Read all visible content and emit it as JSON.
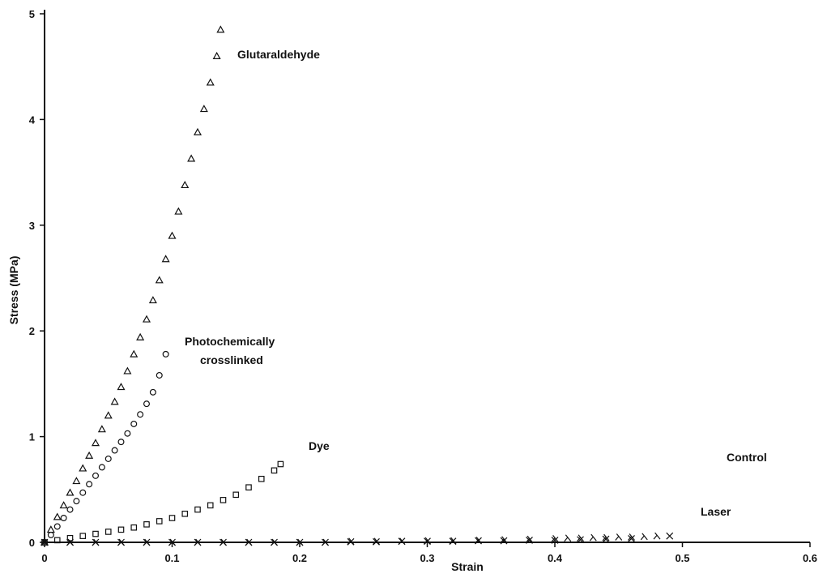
{
  "chart_data": {
    "type": "scatter",
    "title": "",
    "xlabel": "Strain",
    "ylabel": "Stress (MPa)",
    "xlim": [
      0,
      0.6
    ],
    "ylim": [
      0,
      5
    ],
    "xticks": [
      "0",
      "0.1",
      "0.2",
      "0.3",
      "0.4",
      "0.5",
      "0.6"
    ],
    "yticks": [
      "0",
      "1",
      "2",
      "3",
      "4",
      "5"
    ],
    "grid": false,
    "legend": "none",
    "annotations": [
      {
        "text": "Glutaraldehyde",
        "series": "glutaraldehyde"
      },
      {
        "text": "Photochemically",
        "series": "photochemical"
      },
      {
        "text": "crosslinked",
        "series": "photochemical"
      },
      {
        "text": "Dye",
        "series": "dye"
      },
      {
        "text": "Control",
        "series": "control"
      },
      {
        "text": "Laser",
        "series": "laser"
      }
    ],
    "series": [
      {
        "key": "glutaraldehyde",
        "marker": "triangle",
        "x": [
          0.0,
          0.005,
          0.01,
          0.015,
          0.02,
          0.025,
          0.03,
          0.035,
          0.04,
          0.045,
          0.05,
          0.055,
          0.06,
          0.065,
          0.07,
          0.075,
          0.08,
          0.085,
          0.09,
          0.095,
          0.1,
          0.105,
          0.11,
          0.115,
          0.12,
          0.125,
          0.13,
          0.135,
          0.138
        ],
        "y": [
          0.0,
          0.12,
          0.24,
          0.35,
          0.47,
          0.58,
          0.7,
          0.82,
          0.94,
          1.07,
          1.2,
          1.33,
          1.47,
          1.62,
          1.78,
          1.94,
          2.11,
          2.29,
          2.48,
          2.68,
          2.9,
          3.13,
          3.38,
          3.63,
          3.88,
          4.1,
          4.35,
          4.6,
          4.85
        ]
      },
      {
        "key": "photochemical",
        "marker": "circle",
        "x": [
          0.0,
          0.005,
          0.01,
          0.015,
          0.02,
          0.025,
          0.03,
          0.035,
          0.04,
          0.045,
          0.05,
          0.055,
          0.06,
          0.065,
          0.07,
          0.075,
          0.08,
          0.085,
          0.09,
          0.095
        ],
        "y": [
          0.0,
          0.07,
          0.15,
          0.23,
          0.31,
          0.39,
          0.47,
          0.55,
          0.63,
          0.71,
          0.79,
          0.87,
          0.95,
          1.03,
          1.12,
          1.21,
          1.31,
          1.42,
          1.58,
          1.78
        ]
      },
      {
        "key": "dye",
        "marker": "square",
        "x": [
          0.0,
          0.01,
          0.02,
          0.03,
          0.04,
          0.05,
          0.06,
          0.07,
          0.08,
          0.09,
          0.1,
          0.11,
          0.12,
          0.13,
          0.14,
          0.15,
          0.16,
          0.17,
          0.18,
          0.185
        ],
        "y": [
          0.0,
          0.02,
          0.04,
          0.06,
          0.08,
          0.1,
          0.12,
          0.14,
          0.17,
          0.2,
          0.23,
          0.27,
          0.31,
          0.35,
          0.4,
          0.45,
          0.52,
          0.6,
          0.68,
          0.74
        ]
      },
      {
        "key": "control",
        "marker": "x",
        "x": [
          0.0,
          0.02,
          0.04,
          0.06,
          0.08,
          0.1,
          0.12,
          0.14,
          0.16,
          0.18,
          0.2,
          0.22,
          0.24,
          0.26,
          0.28,
          0.3,
          0.32,
          0.34,
          0.36,
          0.38,
          0.4,
          0.42,
          0.44,
          0.46,
          0.49
        ],
        "y": [
          0.0,
          0.0,
          0.0,
          0.0,
          0.0,
          0.0,
          0.0,
          0.0,
          0.0,
          0.0,
          0.0,
          0.0,
          0.005,
          0.005,
          0.01,
          0.01,
          0.01,
          0.015,
          0.015,
          0.02,
          0.02,
          0.025,
          0.03,
          0.035,
          0.06
        ]
      },
      {
        "key": "laser",
        "marker": "lambda",
        "x": [
          0.0,
          0.02,
          0.04,
          0.06,
          0.08,
          0.1,
          0.12,
          0.14,
          0.16,
          0.18,
          0.2,
          0.22,
          0.24,
          0.26,
          0.28,
          0.3,
          0.32,
          0.34,
          0.36,
          0.38,
          0.4,
          0.41,
          0.42,
          0.43,
          0.44,
          0.45,
          0.46,
          0.47,
          0.48
        ],
        "y": [
          0.0,
          0.0,
          0.0,
          0.0,
          0.0,
          0.0,
          0.0,
          0.0,
          0.0,
          0.0,
          0.0,
          0.0,
          0.01,
          0.01,
          0.01,
          0.015,
          0.015,
          0.02,
          0.025,
          0.03,
          0.035,
          0.04,
          0.04,
          0.045,
          0.045,
          0.05,
          0.05,
          0.055,
          0.06
        ]
      }
    ]
  }
}
